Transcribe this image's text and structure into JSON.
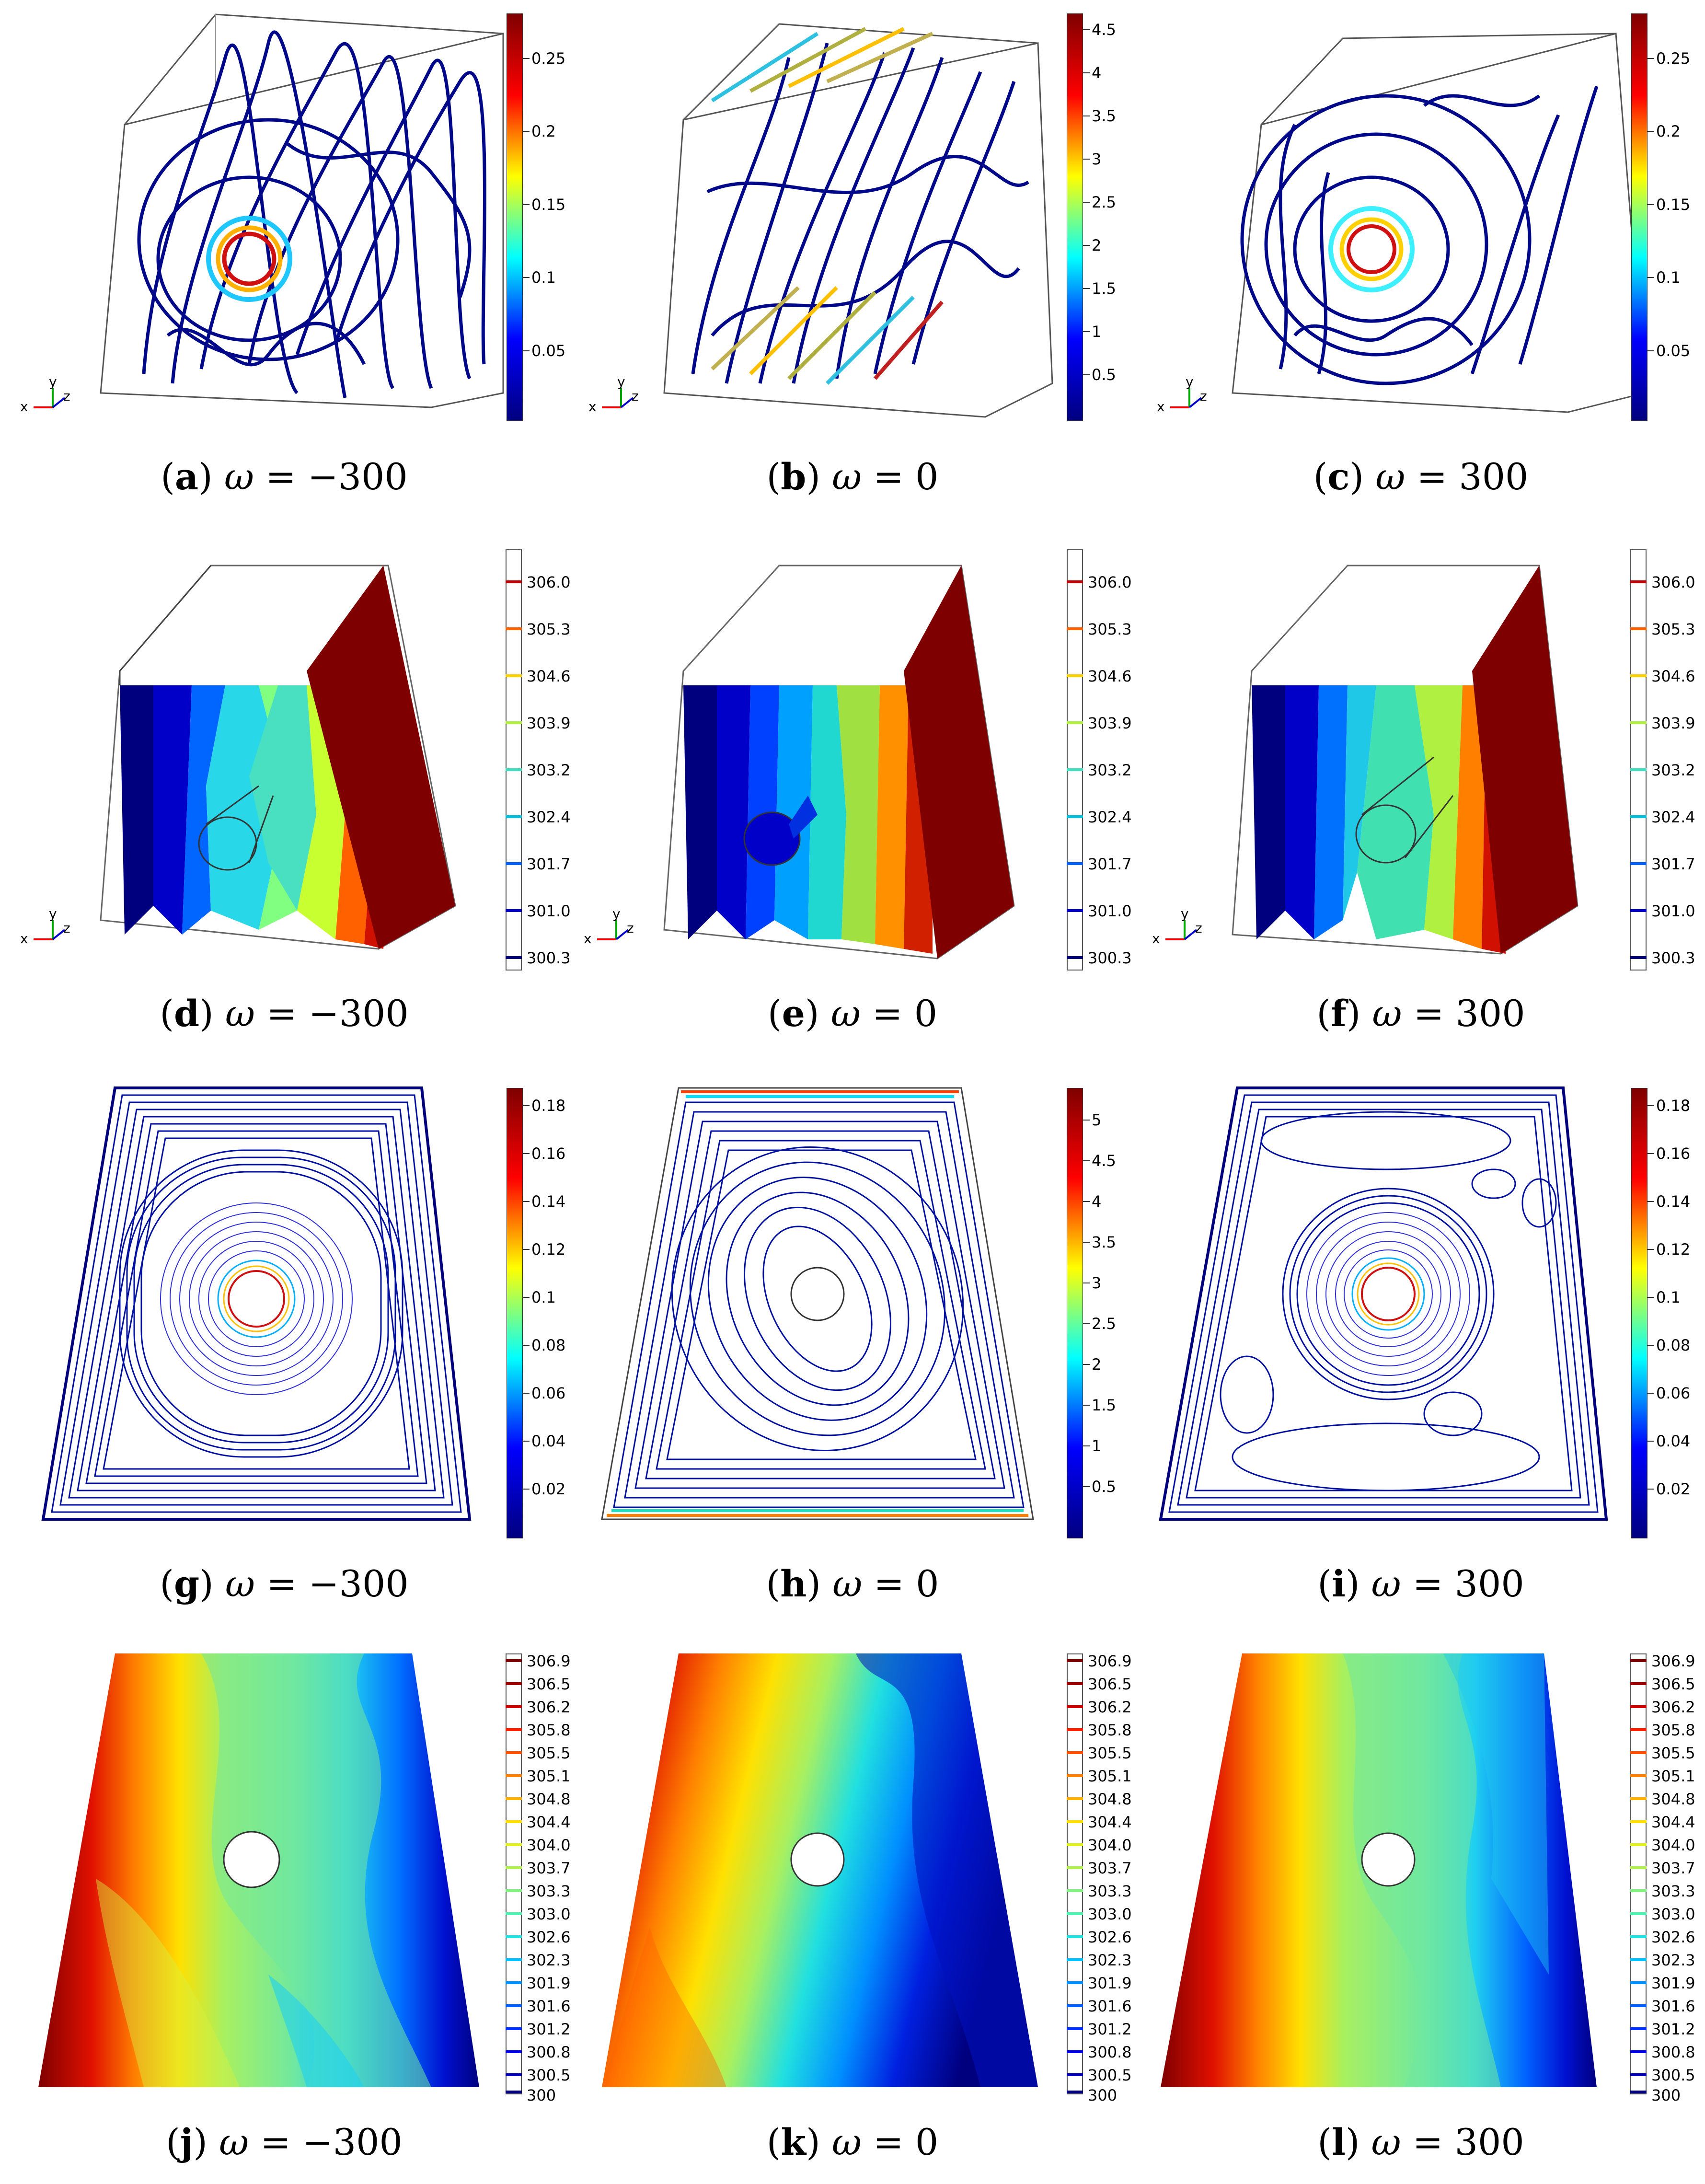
{
  "colorbars": {
    "speed_a": {
      "ticks": [
        "0.25",
        "0.2",
        "0.15",
        "0.1",
        "0.05"
      ]
    },
    "speed_b": {
      "ticks": [
        "4.5",
        "4",
        "3.5",
        "3",
        "2.5",
        "2",
        "1.5",
        "1",
        "0.5"
      ]
    },
    "speed_c": {
      "ticks": [
        "0.25",
        "0.2",
        "0.15",
        "0.1",
        "0.05"
      ]
    },
    "temp3d": {
      "ticks": [
        "306.0",
        "305.3",
        "304.6",
        "303.9",
        "303.2",
        "302.4",
        "301.7",
        "301.0",
        "300.3"
      ]
    },
    "speed_g": {
      "ticks": [
        "0.18",
        "0.16",
        "0.14",
        "0.12",
        "0.1",
        "0.08",
        "0.06",
        "0.04",
        "0.02"
      ]
    },
    "speed_h": {
      "ticks": [
        "5",
        "4.5",
        "4",
        "3.5",
        "3",
        "2.5",
        "2",
        "1.5",
        "1",
        "0.5"
      ]
    },
    "speed_i": {
      "ticks": [
        "0.18",
        "0.16",
        "0.14",
        "0.12",
        "0.1",
        "0.08",
        "0.06",
        "0.04",
        "0.02"
      ]
    },
    "temp2d": {
      "ticks": [
        "306.9",
        "306.5",
        "306.2",
        "305.8",
        "305.5",
        "305.1",
        "304.8",
        "304.4",
        "304.0",
        "303.7",
        "303.3",
        "303.0",
        "302.6",
        "302.3",
        "301.9",
        "301.6",
        "301.2",
        "300.8",
        "300.5",
        "300"
      ]
    }
  },
  "axes_labels": {
    "x": "x",
    "y": "y",
    "z": "z"
  },
  "captions": [
    {
      "letter": "a",
      "omega": "ω",
      "value": "= −300"
    },
    {
      "letter": "b",
      "omega": "ω",
      "value": "= 0"
    },
    {
      "letter": "c",
      "omega": "ω",
      "value": "= 300"
    },
    {
      "letter": "d",
      "omega": "ω",
      "value": "= −300"
    },
    {
      "letter": "e",
      "omega": "ω",
      "value": "= 0"
    },
    {
      "letter": "f",
      "omega": "ω",
      "value": "= 300"
    },
    {
      "letter": "g",
      "omega": "ω",
      "value": "= −300"
    },
    {
      "letter": "h",
      "omega": "ω",
      "value": "= 0"
    },
    {
      "letter": "i",
      "omega": "ω",
      "value": "= 300"
    },
    {
      "letter": "j",
      "omega": "ω",
      "value": "= −300"
    },
    {
      "letter": "k",
      "omega": "ω",
      "value": "= 0"
    },
    {
      "letter": "l",
      "omega": "ω",
      "value": "= 300"
    }
  ],
  "colors": {
    "jet_low": "#00007f",
    "jet_high": "#7f0000",
    "frame": "#444444"
  }
}
